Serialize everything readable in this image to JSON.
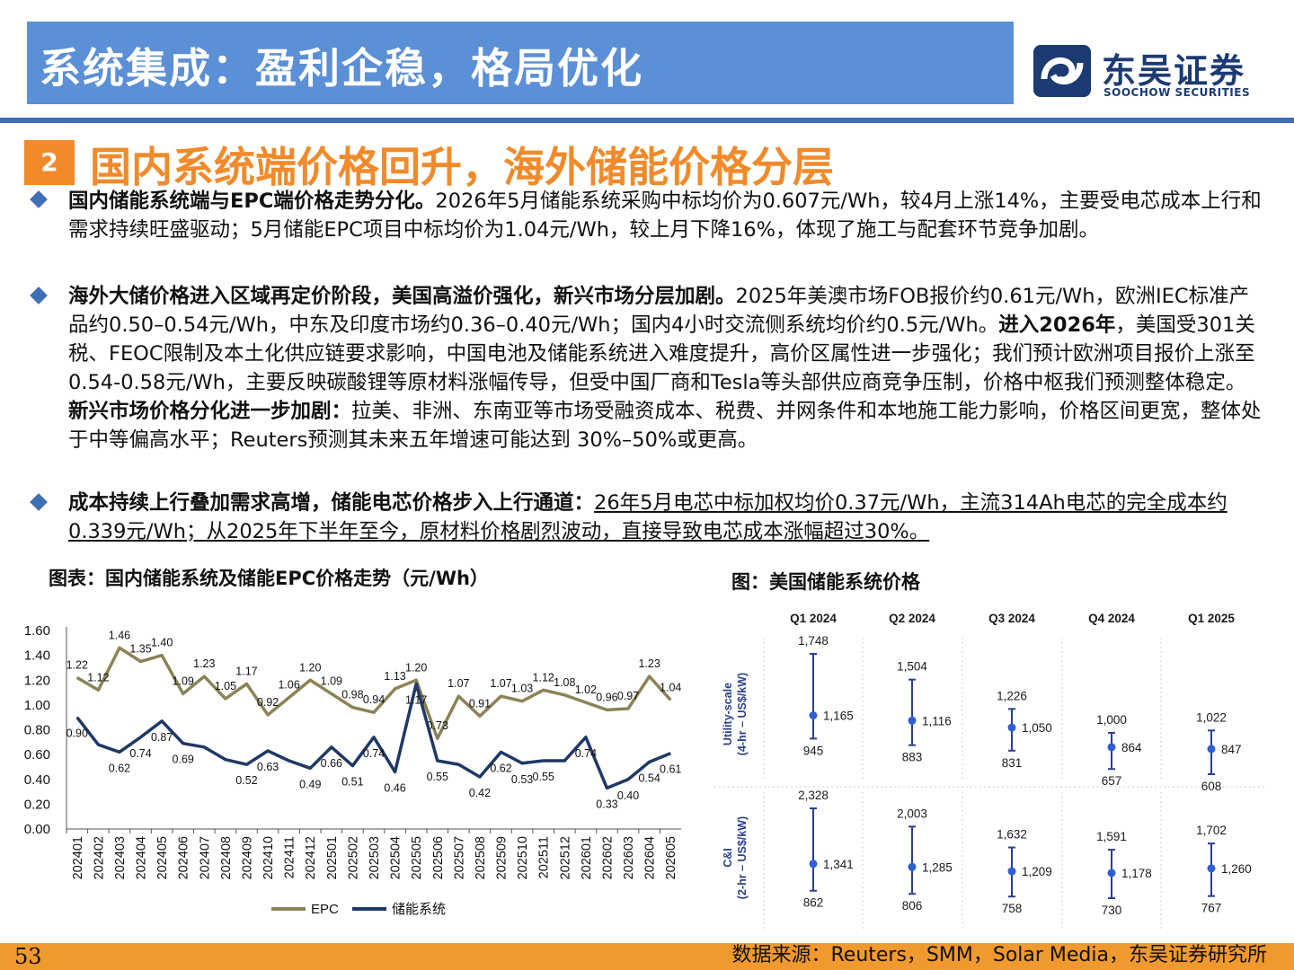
{
  "header": {
    "title": "系统集成：盈利企稳，格局优化",
    "logo_cn": "东吴证券",
    "logo_en": "SOOCHOW SECURITIES"
  },
  "section": {
    "number": "2",
    "title": "国内系统端价格回升，海外储能价格分层"
  },
  "bullets": {
    "b1": {
      "lead": "国内储能系统端与EPC端价格走势分化。",
      "text": "2026年5月储能系统采购中标均价为0.607元/Wh，较4月上涨14%，主要受电芯成本上行和需求持续旺盛驱动；5月储能EPC项目中标均价为1.04元/Wh，较上月下降16%，体现了施工与配套环节竞争加剧。"
    },
    "b2": {
      "lead": "海外大储价格进入区域再定价阶段，美国高溢价强化，新兴市场分层加剧。",
      "text1": "2025年美澳市场FOB报价约0.61元/Wh，欧洲IEC标准产品约0.50–0.54元/Wh，中东及印度市场约0.36–0.40元/Wh；国内4小时交流侧系统均价约0.5元/Wh。",
      "lead2": "进入2026年",
      "text2": "，美国受301关税、FEOC限制及本土化供应链要求影响，中国电池及储能系统进入难度提升，高价区属性进一步强化；我们预计欧洲项目报价上涨至0.54-0.58元/Wh，主要反映碳酸锂等原材料涨幅传导，但受中国厂商和Tesla等头部供应商竞争压制，价格中枢我们预测整体稳定。",
      "lead3": "新兴市场价格分化进一步加剧：",
      "text3": "拉美、非洲、东南亚等市场受融资成本、税费、并网条件和本地施工能力影响，价格区间更宽，整体处于中等偏高水平；Reuters预测其未来五年增速可能达到 30%–50%或更高。"
    },
    "b3": {
      "lead": "成本持续上行叠加需求高增，储能电芯价格步入上行通道：",
      "text": "26年5月电芯中标加权均价0.37元/Wh，主流314Ah电芯的完全成本约0.339元/Wh；从2025年下半年至今，原材料价格剧烈波动，直接导致电芯成本涨幅超过30%。"
    }
  },
  "left_chart_caption": "图表：国内储能系统及储能EPC价格走势（元/Wh）",
  "right_chart_caption": "图：美国储能系统价格",
  "footer": {
    "page": "53",
    "source": "数据来源：Reuters，SMM，Solar Media，东吴证券研究所"
  },
  "colors": {
    "epc": "#8b8357",
    "system": "#1f3864",
    "range_bar": "#2a3f8f",
    "header_blue": "#5b8fd6",
    "accent_orange": "#f08a2a"
  },
  "chart_data": [
    {
      "type": "line",
      "categories": [
        "202401",
        "202402",
        "202403",
        "202404",
        "202405",
        "202406",
        "202407",
        "202408",
        "202409",
        "202410",
        "202411",
        "202412",
        "202501",
        "202502",
        "202503",
        "202504",
        "202505",
        "202506",
        "202507",
        "202508",
        "202509",
        "202510",
        "202511",
        "202512",
        "202601",
        "202602",
        "202603",
        "202604",
        "202605"
      ],
      "series": [
        {
          "name": "EPC",
          "values": [
            1.22,
            1.12,
            1.46,
            1.35,
            1.4,
            1.09,
            1.23,
            1.05,
            1.17,
            0.92,
            1.06,
            1.2,
            1.09,
            0.98,
            0.94,
            1.13,
            1.2,
            0.73,
            1.07,
            0.91,
            1.07,
            1.03,
            1.12,
            1.08,
            1.02,
            0.96,
            0.97,
            1.23,
            1.04
          ]
        },
        {
          "name": "储能系统",
          "values": [
            0.9,
            0.68,
            0.62,
            0.74,
            0.87,
            0.69,
            0.66,
            0.56,
            0.52,
            0.63,
            0.55,
            0.49,
            0.66,
            0.51,
            0.74,
            0.46,
            1.17,
            0.55,
            0.52,
            0.42,
            0.62,
            0.53,
            0.55,
            0.55,
            0.74,
            0.33,
            0.4,
            0.54,
            0.61
          ]
        }
      ],
      "data_labels": {
        "EPC": [
          "1.22",
          "1.12",
          "1.46",
          "1.35",
          "1.40",
          "1.09",
          "1.23",
          "1.05",
          "1.17",
          "0.92",
          "1.06",
          "1.20",
          "1.09",
          "0.98",
          "0.94",
          "1.13",
          "1.20",
          "0.73",
          "1.07",
          "0.91",
          "1.07",
          "1.03",
          "1.12",
          "1.08",
          "1.02",
          "0.96",
          "0.97",
          "1.23",
          "1.04"
        ],
        "储能系统": [
          "0.90",
          "",
          "0.62",
          "0.74",
          "0.87",
          "0.69",
          "",
          "",
          "0.52",
          "0.63",
          "",
          "0.49",
          "0.66",
          "0.51",
          "0.74",
          "0.46",
          "1.17",
          "0.55",
          "",
          "0.42",
          "0.62",
          "0.53",
          "0.55",
          "",
          "0.74",
          "0.33",
          "0.40",
          "0.54",
          "0.61"
        ]
      },
      "yticks": [
        "0.00",
        "0.20",
        "0.40",
        "0.60",
        "0.80",
        "1.00",
        "1.20",
        "1.40",
        "1.60"
      ],
      "ylim": [
        0,
        1.6
      ],
      "legend": "bottom",
      "grid": false
    },
    {
      "type": "range",
      "columns": [
        "Q1 2024",
        "Q2 2024",
        "Q3 2024",
        "Q4 2024",
        "Q1 2025"
      ],
      "rows": [
        {
          "label": "Utility-scale\n(4-hr – US$/kW)",
          "values": [
            {
              "high": 1748,
              "mid": 1165,
              "low": 945,
              "high_label": "1,748",
              "mid_label": "1,165",
              "low_label": "945"
            },
            {
              "high": 1504,
              "mid": 1116,
              "low": 883,
              "high_label": "1,504",
              "mid_label": "1,116",
              "low_label": "883"
            },
            {
              "high": 1226,
              "mid": 1050,
              "low": 831,
              "high_label": "1,226",
              "mid_label": "1,050",
              "low_label": "831"
            },
            {
              "high": 1000,
              "mid": 864,
              "low": 657,
              "high_label": "1,000",
              "mid_label": "864",
              "low_label": "657"
            },
            {
              "high": 1022,
              "mid": 847,
              "low": 608,
              "high_label": "1,022",
              "mid_label": "847",
              "low_label": "608"
            }
          ]
        },
        {
          "label": "C&I\n(2-hr – US$/kW)",
          "values": [
            {
              "high": 2328,
              "mid": 1341,
              "low": 862,
              "high_label": "2,328",
              "mid_label": "1,341",
              "low_label": "862"
            },
            {
              "high": 2003,
              "mid": 1285,
              "low": 806,
              "high_label": "2,003",
              "mid_label": "1,285",
              "low_label": "806"
            },
            {
              "high": 1632,
              "mid": 1209,
              "low": 758,
              "high_label": "1,632",
              "mid_label": "1,209",
              "low_label": "758"
            },
            {
              "high": 1591,
              "mid": 1178,
              "low": 730,
              "high_label": "1,591",
              "mid_label": "1,178",
              "low_label": "730"
            },
            {
              "high": 1702,
              "mid": 1260,
              "low": 767,
              "high_label": "1,702",
              "mid_label": "1,260",
              "low_label": "767"
            }
          ]
        }
      ]
    }
  ]
}
